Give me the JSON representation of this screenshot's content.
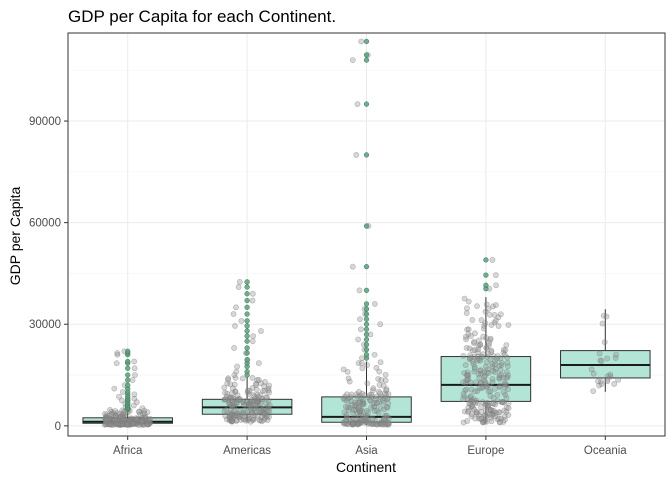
{
  "chart_data": {
    "type": "box",
    "title": "GDP per Capita for each Continent.",
    "xlabel": "Continent",
    "ylabel": "GDP per Capita",
    "categories": [
      "Africa",
      "Americas",
      "Asia",
      "Europe",
      "Oceania"
    ],
    "ylim": [
      -3000,
      116000
    ],
    "yticks": [
      0,
      30000,
      60000,
      90000
    ],
    "grid": true,
    "legend": "none",
    "colors": {
      "box_fill": "#b2e5d6",
      "box_stroke": "#333333",
      "median": "#1a1a1a",
      "jitter_point": "#8c8c8c",
      "outlier": "#5a9e7a",
      "grid": "#ebebeb",
      "panel_border": "#333333"
    },
    "boxes": [
      {
        "category": "Africa",
        "min": 241,
        "q1": 762,
        "median": 1192,
        "q3": 2377,
        "max": 4750,
        "spread": 0.55,
        "outliers": [
          4890,
          5200,
          5600,
          6000,
          6500,
          7000,
          7500,
          8000,
          8600,
          9300,
          10000,
          11000,
          12000,
          13500,
          15000,
          17000,
          18500,
          19000,
          21000,
          21500,
          22000
        ]
      },
      {
        "category": "Americas",
        "min": 1202,
        "q1": 3428,
        "median": 5466,
        "q3": 7830,
        "max": 14500,
        "spread": 0.55,
        "outliers": [
          15000,
          16000,
          17500,
          18500,
          19500,
          21500,
          23000,
          25000,
          26500,
          28000,
          29500,
          31000,
          33000,
          35000,
          37000,
          39000,
          41000,
          42500
        ]
      },
      {
        "category": "Asia",
        "min": 331,
        "q1": 1057,
        "median": 2647,
        "q3": 8549,
        "max": 19000,
        "spread": 0.55,
        "outliers": [
          20000,
          21000,
          22500,
          24000,
          25500,
          27000,
          28500,
          30000,
          31500,
          33000,
          34500,
          36000,
          40000,
          47000,
          59000,
          80000,
          95000,
          108000,
          109500,
          113500
        ]
      },
      {
        "category": "Europe",
        "min": 974,
        "q1": 7213,
        "median": 12082,
        "q3": 20461,
        "max": 38000,
        "spread": 0.55,
        "outliers": [
          40500,
          41500,
          44500,
          49000
        ]
      },
      {
        "category": "Oceania",
        "min": 10040,
        "q1": 14142,
        "median": 17983,
        "q3": 22214,
        "max": 34435,
        "spread": 0.35,
        "outliers": []
      }
    ]
  }
}
